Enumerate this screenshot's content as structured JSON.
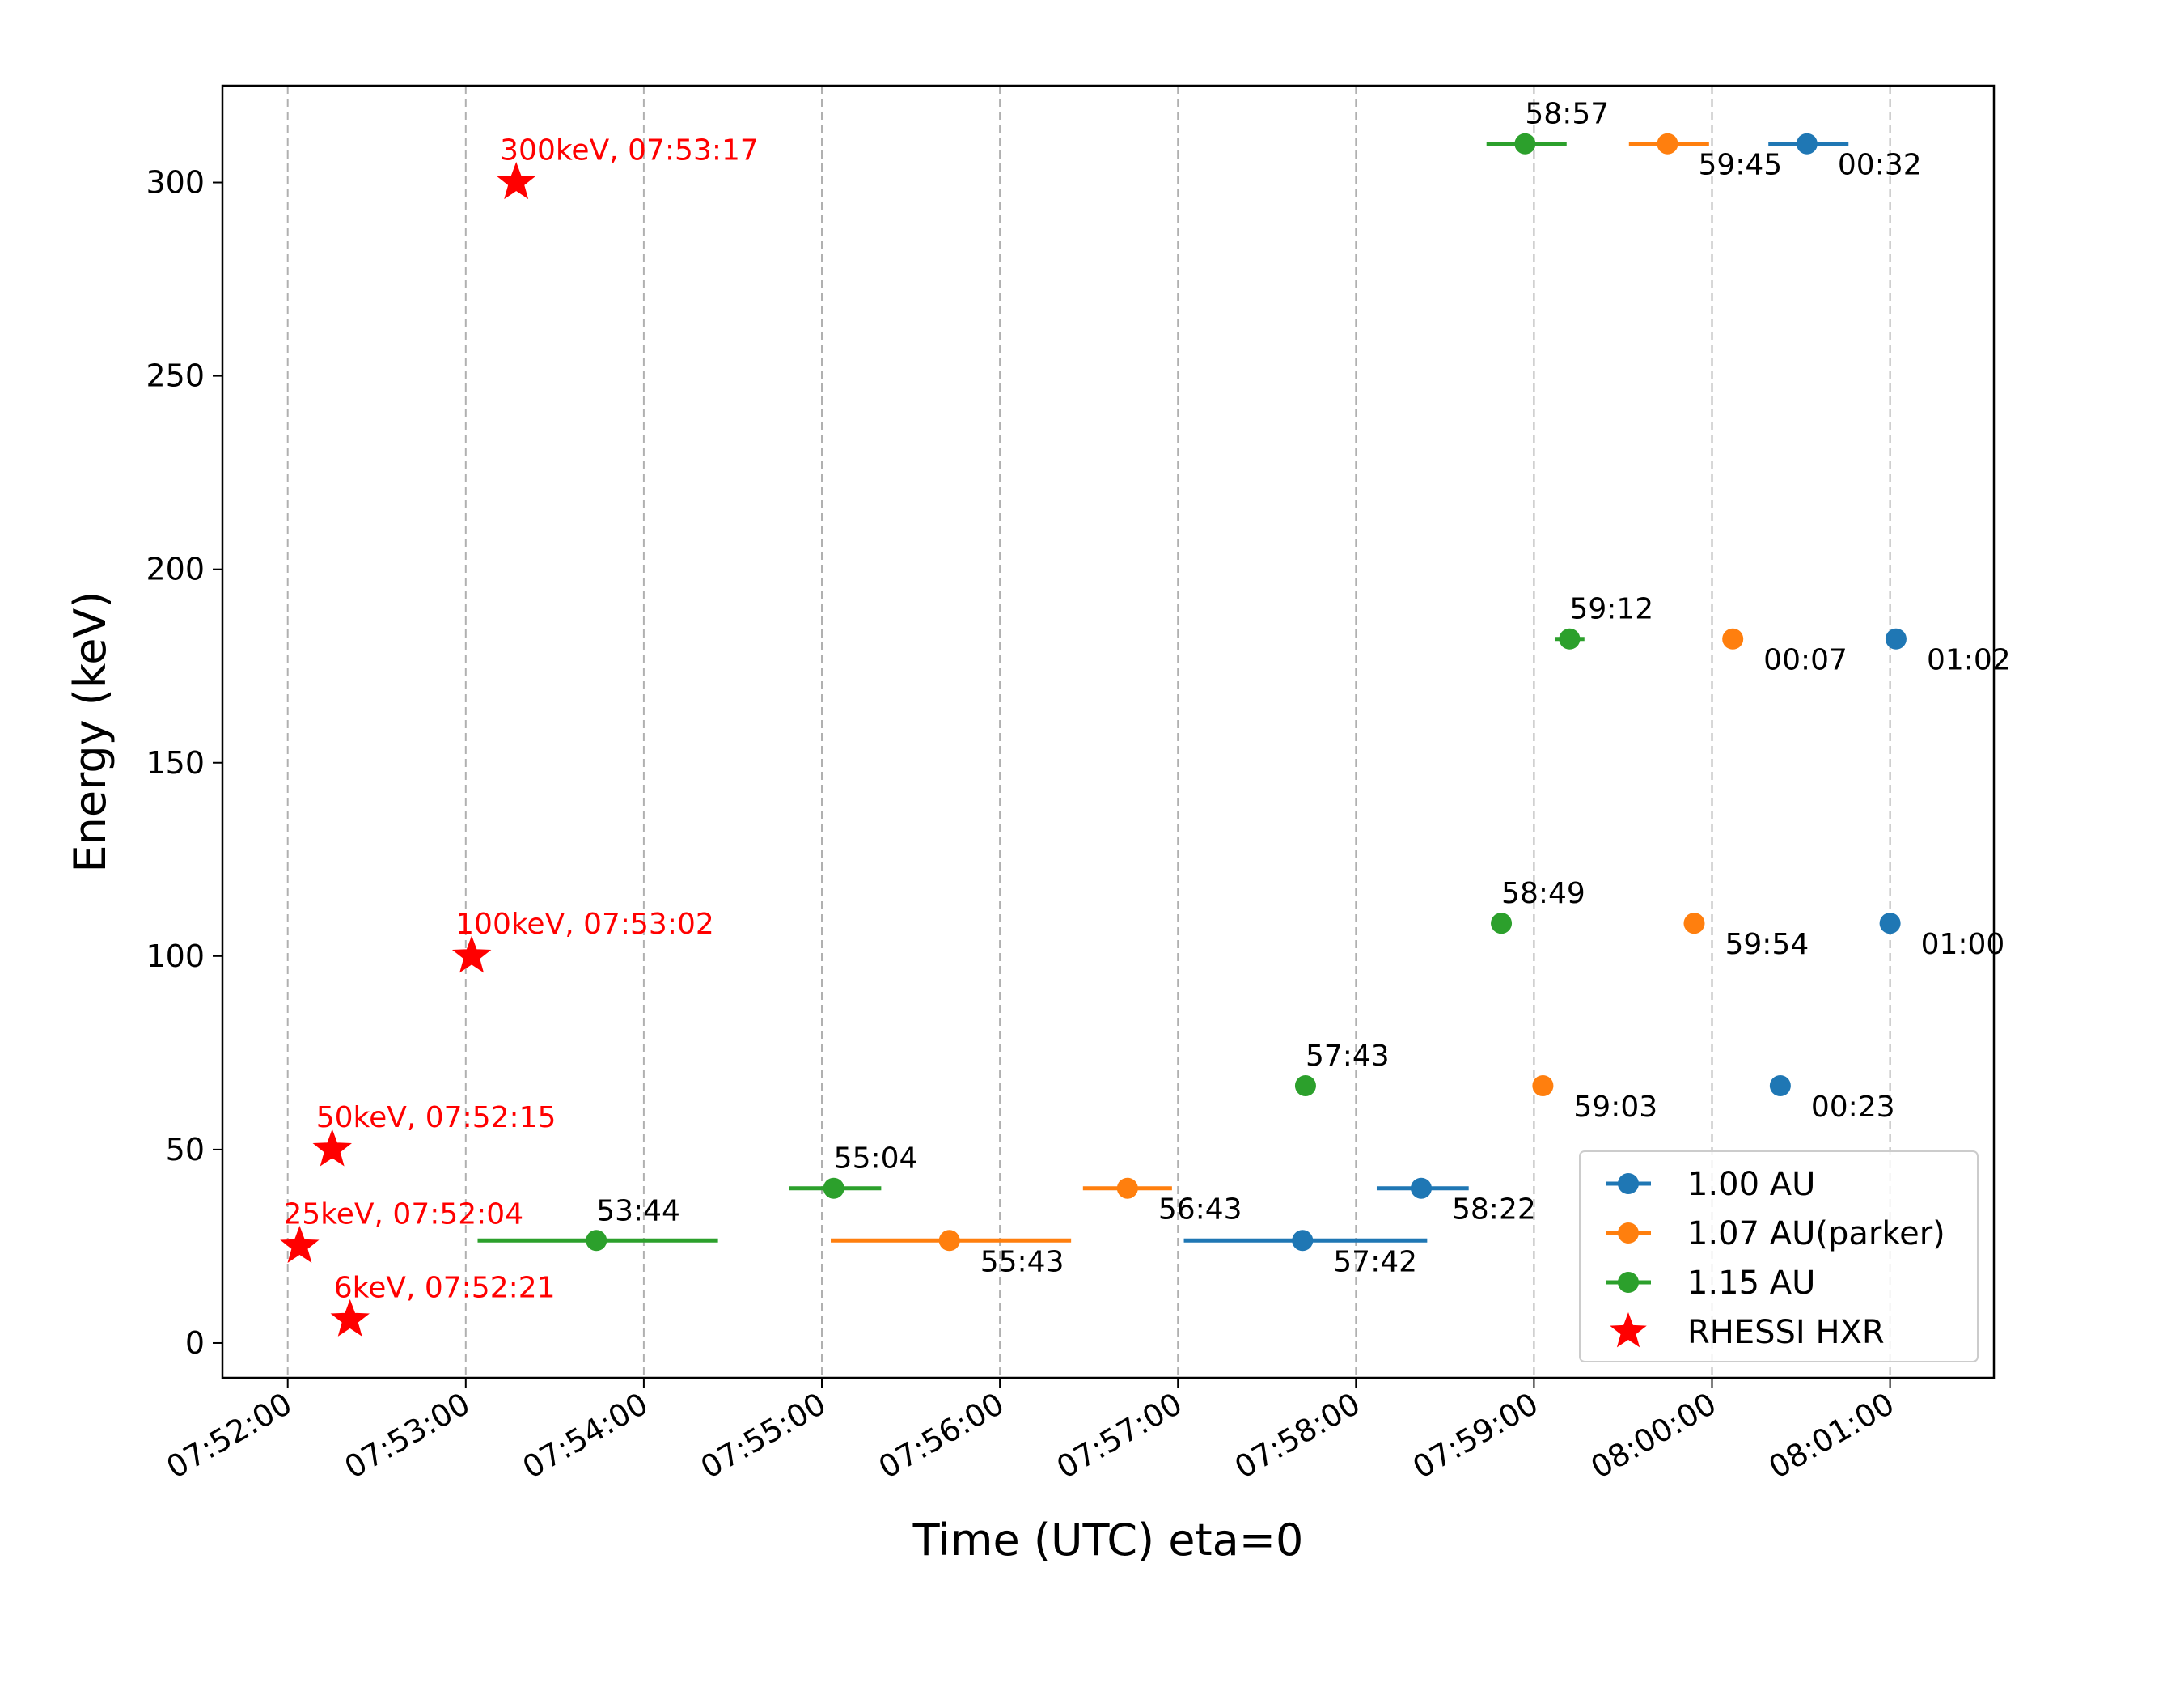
{
  "chart_data": {
    "type": "scatter",
    "xlabel": "Time (UTC) eta=0",
    "ylabel": "Energy (keV)",
    "xlim": [
      "07:51:38",
      "08:01:35"
    ],
    "ylim": [
      -9,
      325
    ],
    "grid": "vertical dashed",
    "legend_position": "lower-right",
    "x_ticks": [
      "07:52:00",
      "07:53:00",
      "07:54:00",
      "07:55:00",
      "07:56:00",
      "07:57:00",
      "07:58:00",
      "07:59:00",
      "08:00:00",
      "08:01:00"
    ],
    "y_ticks": [
      0,
      50,
      100,
      150,
      200,
      250,
      300
    ],
    "series": [
      {
        "name": "1.00 AU",
        "color": "#1f77b4",
        "marker": "circle",
        "points": [
          {
            "t": "07:57:42",
            "energy": 26.5,
            "xerr_start": "07:57:02",
            "xerr_end": "07:58:24",
            "label": "57:42"
          },
          {
            "t": "07:58:22",
            "energy": 40,
            "xerr_start": "07:58:07",
            "xerr_end": "07:58:38",
            "label": "58:22"
          },
          {
            "t": "08:00:23",
            "energy": 66.5,
            "xerr_start": "08:00:21",
            "xerr_end": "08:00:25",
            "label": "00:23"
          },
          {
            "t": "08:01:00",
            "energy": 108.5,
            "xerr_start": "08:01:00",
            "xerr_end": "08:01:00",
            "label": "01:00"
          },
          {
            "t": "08:01:02",
            "energy": 182,
            "xerr_start": "08:00:59",
            "xerr_end": "08:01:04",
            "label": "01:02"
          },
          {
            "t": "08:00:32",
            "energy": 310,
            "xerr_start": "08:00:19",
            "xerr_end": "08:00:46",
            "label": "00:32"
          }
        ]
      },
      {
        "name": "1.07 AU(parker)",
        "color": "#ff7f0e",
        "marker": "circle",
        "points": [
          {
            "t": "07:55:43",
            "energy": 26.5,
            "xerr_start": "07:55:03",
            "xerr_end": "07:56:24",
            "label": "55:43"
          },
          {
            "t": "07:56:43",
            "energy": 40,
            "xerr_start": "07:56:28",
            "xerr_end": "07:56:58",
            "label": "56:43"
          },
          {
            "t": "07:59:03",
            "energy": 66.5,
            "xerr_start": "07:59:00",
            "xerr_end": "07:59:06",
            "label": "59:03"
          },
          {
            "t": "07:59:54",
            "energy": 108.5,
            "xerr_start": "07:59:54",
            "xerr_end": "07:59:54",
            "label": "59:54"
          },
          {
            "t": "08:00:07",
            "energy": 182,
            "xerr_start": "08:00:04",
            "xerr_end": "08:00:10",
            "label": "00:07"
          },
          {
            "t": "07:59:45",
            "energy": 310,
            "xerr_start": "07:59:32",
            "xerr_end": "07:59:59",
            "label": "59:45"
          }
        ]
      },
      {
        "name": "1.15 AU",
        "color": "#2ca02c",
        "marker": "circle",
        "points": [
          {
            "t": "07:53:44",
            "energy": 26.5,
            "xerr_start": "07:53:04",
            "xerr_end": "07:54:25",
            "label": "53:44"
          },
          {
            "t": "07:55:04",
            "energy": 40,
            "xerr_start": "07:54:49",
            "xerr_end": "07:55:20",
            "label": "55:04"
          },
          {
            "t": "07:57:43",
            "energy": 66.5,
            "xerr_start": "07:57:40",
            "xerr_end": "07:57:46",
            "label": "57:43"
          },
          {
            "t": "07:58:49",
            "energy": 108.5,
            "xerr_start": "07:58:49",
            "xerr_end": "07:58:49",
            "label": "58:49"
          },
          {
            "t": "07:59:12",
            "energy": 182,
            "xerr_start": "07:59:07",
            "xerr_end": "07:59:17",
            "label": "59:12"
          },
          {
            "t": "07:58:57",
            "energy": 310,
            "xerr_start": "07:58:44",
            "xerr_end": "07:59:11",
            "label": "58:57"
          }
        ]
      },
      {
        "name": "RHESSI HXR",
        "color": "#ff0000",
        "marker": "star",
        "points": [
          {
            "t": "07:52:04",
            "energy": 25,
            "label": "25keV, 07:52:04"
          },
          {
            "t": "07:52:15",
            "energy": 50,
            "label": "50keV, 07:52:15"
          },
          {
            "t": "07:52:21",
            "energy": 6,
            "label": "6keV, 07:52:21"
          },
          {
            "t": "07:53:02",
            "energy": 100,
            "label": "100keV, 07:53:02"
          },
          {
            "t": "07:53:17",
            "energy": 300,
            "label": "300keV, 07:53:17"
          }
        ]
      }
    ]
  }
}
